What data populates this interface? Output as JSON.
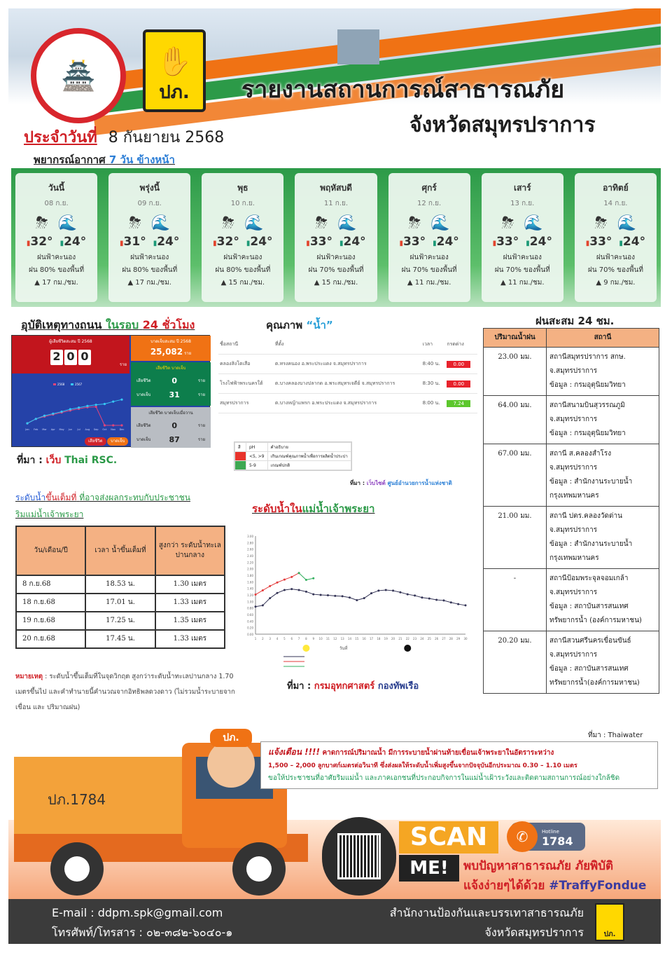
{
  "header": {
    "title_line1": "รายงานสถานการณ์สาธารณภัย",
    "title_line2": "จังหวัดสมุทรปราการ",
    "logo_ddpm_text": "ปภ.",
    "province_seal_text": "จังหวัดสมุทรปราการ",
    "date_label": "ประจำวันที่",
    "date": "8 กันยายน 2568"
  },
  "forecast": {
    "heading": "พยากรณ์อากาศ",
    "heading_blue": "7 วัน ข้างหน้า",
    "days": [
      {
        "day": "วันนี้",
        "date": "08 ก.ย.",
        "high": "32°",
        "low": "24°",
        "cond": "ฝนฟ้าคะนอง",
        "rain": "ฝน 80% ของพื้นที่",
        "wind": "▲ 17 กม./ชม."
      },
      {
        "day": "พรุ่งนี้",
        "date": "09 ก.ย.",
        "high": "31°",
        "low": "24°",
        "cond": "ฝนฟ้าคะนอง",
        "rain": "ฝน 80% ของพื้นที่",
        "wind": "▲ 17 กม./ชม."
      },
      {
        "day": "พุธ",
        "date": "10 ก.ย.",
        "high": "32°",
        "low": "24°",
        "cond": "ฝนฟ้าคะนอง",
        "rain": "ฝน 80% ของพื้นที่",
        "wind": "▲ 15 กม./ชม."
      },
      {
        "day": "พฤหัสบดี",
        "date": "11 ก.ย.",
        "high": "33°",
        "low": "24°",
        "cond": "ฝนฟ้าคะนอง",
        "rain": "ฝน 70% ของพื้นที่",
        "wind": "▲ 15 กม./ชม."
      },
      {
        "day": "ศุกร์",
        "date": "12 ก.ย.",
        "high": "33°",
        "low": "24°",
        "cond": "ฝนฟ้าคะนอง",
        "rain": "ฝน 70% ของพื้นที่",
        "wind": "▲ 11 กม./ชม."
      },
      {
        "day": "เสาร์",
        "date": "13 ก.ย.",
        "high": "33°",
        "low": "24°",
        "cond": "ฝนฟ้าคะนอง",
        "rain": "ฝน 70% ของพื้นที่",
        "wind": "▲ 11 กม./ชม."
      },
      {
        "day": "อาทิตย์",
        "date": "14 ก.ย.",
        "high": "33°",
        "low": "24°",
        "cond": "ฝนฟ้าคะนอง",
        "rain": "ฝน 70% ของพื้นที่",
        "wind": "▲ 9 กม./ชม."
      }
    ]
  },
  "accident": {
    "heading": "อุบัติเหตุทางถนน",
    "heading_green": "ในรอบ",
    "heading_red": "24 ชั่วโมง",
    "deaths_label": "ผู้เสียชีวิตสะสม ปี 2568",
    "deaths_digits": [
      "2",
      "0",
      "0"
    ],
    "deaths_unit": "ราย",
    "injured_label": "บาดเจ็บสะสม ปี 2568",
    "injured": "25,082",
    "injured_unit": "ราย",
    "national_label": "เสียชีวิต บาดเจ็บ",
    "dead_label": "เสียชีวิต",
    "injured_short": "บาดเจ็บ",
    "g_dead": "0",
    "g_inj": "31",
    "gray_label": "เสียชีวิต บาดเจ็บเมื่อวาน",
    "y_dead": "0",
    "y_inj": "87",
    "chart_legend": [
      "2568",
      "2567"
    ],
    "btn_dead": "เสียชีวิต",
    "btn_inj": "บาดเจ็บ",
    "source_label": "ที่มา :",
    "source_web": "เว็บ",
    "source_name": "Thai RSC."
  },
  "water_quality": {
    "heading": "คุณภาพ",
    "heading_quoted": "“น้ำ”",
    "columns": [
      "ชื่อสถานี",
      "ที่ตั้ง",
      "เวลา",
      "กรดด่าง"
    ],
    "rows": [
      {
        "name": "คลองสิงโตเสือ",
        "loc": "ต.ทรงคนอง อ.พระประแดง จ.สมุทรปราการ",
        "time": "8:40 น.",
        "ph": "0.00",
        "color": "#e8222c"
      },
      {
        "name": "โรงไฟฟ้าพระนครใต้",
        "loc": "ต.บางคลองบางปลากด อ.พระสมุทรเจดีย์ จ.สมุทรปราการ",
        "time": "8:30 น.",
        "ph": "0.00",
        "color": "#e8222c"
      },
      {
        "name": "สมุทรปราการ",
        "loc": "ต.บางหญ้าแพรก อ.พระประแดง จ.สมุทรปราการ",
        "time": "8:00 น.",
        "ph": "7.24",
        "color": "#5cc72c"
      }
    ],
    "legend_head": [
      "สี",
      "pH",
      "คำอธิบาย"
    ],
    "legend": [
      {
        "color": "#e8342c",
        "ph": "<5, >9",
        "desc": "เกินเกณฑ์คุณภาพน้ำเพื่อการผลิตน้ำประปา"
      },
      {
        "color": "#3ea852",
        "ph": "5-9",
        "desc": "เกณฑ์ปกติ"
      }
    ],
    "source_label": "ที่มา :",
    "source_web": "เว็บไซต์",
    "source_name": "ศูนย์อำนวยการน้ำแห่งชาติ"
  },
  "rain": {
    "heading": "ฝนสะสม 24 ชม.",
    "columns": [
      "ปริมาณน้ำฝน",
      "สถานี"
    ],
    "rows": [
      {
        "amount": "23.00 มม.",
        "station": [
          "สถานีสมุทรปราการ สกษ.",
          "จ.สมุทรปราการ",
          "ข้อมูล : กรมอุตุนิยมวิทยา"
        ]
      },
      {
        "amount": "64.00 มม.",
        "station": [
          "สถานีสนามบินสุวรรณภูมิ",
          "จ.สมุทรปราการ",
          "ข้อมูล : กรมอุตุนิยมวิทยา"
        ]
      },
      {
        "amount": "67.00 มม.",
        "station": [
          "สถานี ส.คลองสำโรง",
          "จ.สมุทรปราการ",
          "ข้อมูล : สำนักงานระบายน้ำ",
          "กรุงเทพมหานคร"
        ]
      },
      {
        "amount": "21.00 มม.",
        "station": [
          "สถานี ปตร.คลองวัดด่าน",
          "จ.สมุทรปราการ",
          "ข้อมูล : สำนักงานระบายน้ำ",
          "กรุงเทพมหานคร"
        ]
      },
      {
        "amount": "-",
        "station": [
          "สถานีป้อมพระจุลจอมเกล้า",
          "จ.สมุทรปราการ",
          "ข้อมูล : สถาบันสารสนเทศ",
          "ทรัพยากรน้ำ (องค์การมหาชน)"
        ]
      },
      {
        "amount": "20.20 มม.",
        "station": [
          "สถานีสวนศรีนครเขื่อนขันธ์",
          "จ.สมุทรปราการ",
          "ข้อมูล : สถาบันสารสนเทศ",
          "ทรัพยากรน้ำ(องค์การมหาชน)"
        ]
      }
    ],
    "source": "ที่มา : Thaiwater"
  },
  "tide": {
    "heading_blue": "ระดับน้ำ",
    "heading_red": "ขึ้นเต็มที่",
    "heading_green": "ที่อาจส่งผลกระทบกับประชาชน",
    "heading_line2": "ริมแม่น้ำเจ้าพระยา",
    "columns": [
      "วัน/เดือน/ปี",
      "เวลา น้ำขึ้นเต็มที่",
      "สูงกว่า ระดับน้ำทะเล ปานกลาง"
    ],
    "rows": [
      [
        "8 ก.ย.68",
        "18.53 น.",
        "1.30 เมตร"
      ],
      [
        "18 ก.ย.68",
        "17.01 น.",
        "1.33 เมตร"
      ],
      [
        "19 ก.ย.68",
        "17.25 น.",
        "1.35 เมตร"
      ],
      [
        "20 ก.ย.68",
        "17.45 น.",
        "1.33 เมตร"
      ]
    ],
    "note_label": "หมายเหตุ",
    "note": " : ระดับน้ำขึ้นเต็มที่ในจุดวิกฤต สูงกว่าระดับน้ำทะเลปานกลาง 1.70 เมตรขึ้นไป และคำทำนายนี้คำนวณจากอิทธิพลดวงดาว (ไม่รวมน้ำระบายจากเขื่อน และ ปริมาณฝน)"
  },
  "river": {
    "heading_red": "ระดับน้ำใน",
    "heading_green": "แม่น้ำเจ้าพระยา",
    "source_label": "ที่มา :",
    "source_red": "กรมอุทกศาสตร์",
    "source_blue": "กองทัพเรือ"
  },
  "warning": {
    "label": "แจ้งเตือน !!!!",
    "line1": " คาดการณ์ปริมาณน้ำ มีการระบายน้ำผ่านท้ายเขื่อนเจ้าพระยาในอัตราระหว่าง",
    "line2": "1,500 – 2,000 ลูกบาศก์เมตรต่อวินาที ซึ่งส่งผลให้ระดับน้ำเพิ่มสูงขึ้นจากปัจจุบันอีกประมาณ 0.30 – 1.10 เมตร",
    "line3": "ขอให้ประชาชนที่อาศัยริมแม่น้ำ และภาคเอกชนที่ประกอบกิจการในแม่น้ำเฝ้าระวังและติดตามสถานการณ์อย่างใกล้ชิด"
  },
  "promo": {
    "truck_text": "ปภ.1784",
    "mascot_hat": "ปภ.",
    "scan": "SCAN",
    "me": "ME!",
    "hotline_label": "Hotline",
    "hotline": "1784",
    "line1": "พบปัญหาสาธารณภัย ภัยพิบัติ",
    "line2": "แจ้งง่ายๆได้ด้วย",
    "hashtag": "#TraffyFondue"
  },
  "footer": {
    "email": "E-mail : ddpm.spk@gmail.com",
    "phone": "โทรศัพท์/โทรสาร : ๐๒-๓๘๒-๖๐๔๐-๑",
    "office1": "สำนักงานป้องกันและบรรเทาสาธารณภัย",
    "office2": "จังหวัดสมุทรปราการ",
    "logo_text": "ปภ."
  },
  "colors": {
    "red": "#d01f25",
    "green": "#2c9a48",
    "orange": "#f07214",
    "table_header": "#f4b183"
  },
  "chart_data": [
    {
      "type": "line",
      "ylim": [
        0,
        3.0
      ],
      "x": [
        1,
        2,
        3,
        4,
        5,
        6,
        7,
        8,
        9,
        10,
        11,
        12,
        13,
        14,
        15,
        16,
        17,
        18,
        19,
        20,
        21,
        22,
        23,
        24,
        25,
        26,
        27,
        28,
        29,
        30
      ],
      "xlabel": "วันที่",
      "series": [
        {
          "color": "#333355",
          "values": [
            0.84,
            0.88,
            1.1,
            1.26,
            1.35,
            1.38,
            1.35,
            1.3,
            1.22,
            1.2,
            1.19,
            1.17,
            1.16,
            1.12,
            1.04,
            1.1,
            1.25,
            1.33,
            1.35,
            1.33,
            1.28,
            1.22,
            1.18,
            1.12,
            1.09,
            1.05,
            1.03,
            0.97,
            0.92,
            0.88
          ]
        },
        {
          "color": "#e33a3a",
          "x": [
            1,
            2,
            3,
            4,
            5,
            6,
            7
          ],
          "values": [
            1.21,
            1.34,
            1.47,
            1.58,
            1.67,
            1.75,
            1.87
          ]
        },
        {
          "color": "#35b060",
          "x": [
            7,
            8,
            9
          ],
          "values": [
            1.87,
            1.66,
            1.71
          ]
        }
      ]
    },
    {
      "type": "line",
      "categories": [
        "Jan",
        "Feb",
        "Mar",
        "Apr",
        "May",
        "Jun",
        "Jul",
        "Aug",
        "Sep",
        "Oct",
        "Nov",
        "Dec"
      ],
      "ylim": [
        0,
        400
      ],
      "series": [
        {
          "name": "2568",
          "color": "#e0457b",
          "values": [
            25,
            80,
            110,
            135,
            160,
            185,
            205,
            225,
            230,
            0,
            0,
            0
          ]
        },
        {
          "name": "2567",
          "color": "#36c6f4",
          "values": [
            25,
            80,
            120,
            145,
            170,
            200,
            220,
            240,
            255,
            265,
            295,
            320
          ]
        }
      ]
    }
  ]
}
